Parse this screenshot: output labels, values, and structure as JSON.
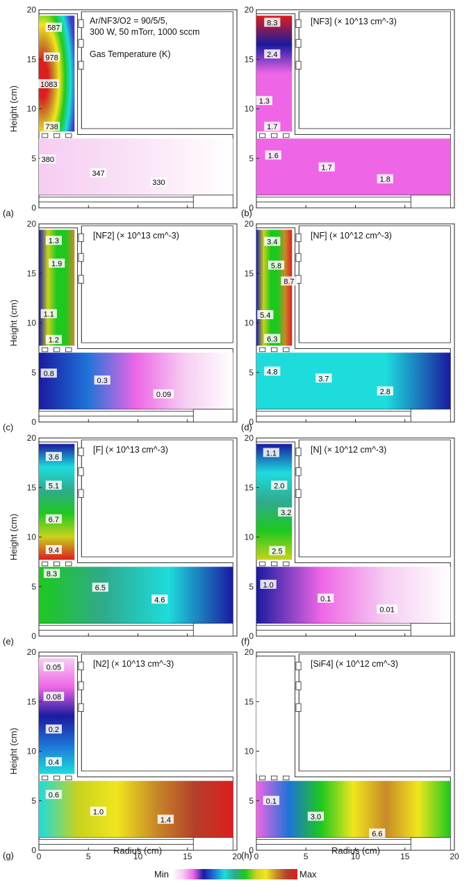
{
  "figure": {
    "xlabel": "Radius (cm)",
    "ylabel": "Height (cm)",
    "scale_min": "Min",
    "scale_max": "Max",
    "colormap": [
      "#ffffff",
      "#f6cdf2",
      "#ee66e6",
      "#1a1aa0",
      "#1e73d8",
      "#1edcdc",
      "#2faa8c",
      "#1ec81e",
      "#c8d21e",
      "#f0e61e",
      "#c88a28",
      "#b4402a",
      "#dc1e1e"
    ]
  },
  "chart_data": [
    {
      "type": "heatmap",
      "panel": "(a)",
      "title_lines": [
        "Ar/NF3/O2 = 90/5/5,",
        "300 W, 50 mTorr, 1000 sccm",
        "Gas Temperature (K)"
      ],
      "xlim": [
        0,
        20
      ],
      "ylim": [
        0,
        20
      ],
      "xticks": [
        0,
        5,
        10,
        15,
        20
      ],
      "yticks": [
        0,
        5,
        10,
        15,
        20
      ],
      "contour_labels": [
        {
          "r": 1.5,
          "z": 18.2,
          "text": "587"
        },
        {
          "r": 1.3,
          "z": 15.2,
          "text": "978"
        },
        {
          "r": 1.0,
          "z": 12.5,
          "text": "1083"
        },
        {
          "r": 1.3,
          "z": 8.2,
          "text": "738"
        },
        {
          "r": 0.9,
          "z": 4.9,
          "text": "380"
        },
        {
          "r": 6.0,
          "z": 3.5,
          "text": "347"
        },
        {
          "r": 12.1,
          "z": 2.6,
          "text": "330"
        }
      ]
    },
    {
      "type": "heatmap",
      "panel": "(b)",
      "title": "[NF3] (× 10^13 cm^-3)",
      "xlim": [
        0,
        20
      ],
      "ylim": [
        0,
        20
      ],
      "xticks": [
        0,
        5,
        10,
        15,
        20
      ],
      "yticks": [
        0,
        5,
        10,
        15,
        20
      ],
      "contour_labels": [
        {
          "r": 1.6,
          "z": 18.7,
          "text": "8.3"
        },
        {
          "r": 1.6,
          "z": 15.5,
          "text": "2.4"
        },
        {
          "r": 0.8,
          "z": 10.8,
          "text": "1.3"
        },
        {
          "r": 1.6,
          "z": 8.2,
          "text": "1.7"
        },
        {
          "r": 1.7,
          "z": 5.3,
          "text": "1.6"
        },
        {
          "r": 7.1,
          "z": 4.1,
          "text": "1.7"
        },
        {
          "r": 13.0,
          "z": 2.9,
          "text": "1.8"
        }
      ]
    },
    {
      "type": "heatmap",
      "panel": "(c)",
      "title": "[NF2] (× 10^13 cm^-3)",
      "xlim": [
        0,
        20
      ],
      "ylim": [
        0,
        20
      ],
      "xticks": [
        0,
        5,
        10,
        15,
        20
      ],
      "yticks": [
        0,
        5,
        10,
        15,
        20
      ],
      "contour_labels": [
        {
          "r": 1.5,
          "z": 18.3,
          "text": "1.3"
        },
        {
          "r": 1.8,
          "z": 16.0,
          "text": "1.9"
        },
        {
          "r": 1.0,
          "z": 10.9,
          "text": "1.1"
        },
        {
          "r": 1.5,
          "z": 8.3,
          "text": "1.2"
        },
        {
          "r": 1.0,
          "z": 4.9,
          "text": "0.8"
        },
        {
          "r": 6.4,
          "z": 4.2,
          "text": "0.3"
        },
        {
          "r": 12.6,
          "z": 2.8,
          "text": "0.09"
        }
      ]
    },
    {
      "type": "heatmap",
      "panel": "(d)",
      "title": "[NF] (× 10^12 cm^-3)",
      "xlim": [
        0,
        20
      ],
      "ylim": [
        0,
        20
      ],
      "xticks": [
        0,
        5,
        10,
        15,
        20
      ],
      "yticks": [
        0,
        5,
        10,
        15,
        20
      ],
      "contour_labels": [
        {
          "r": 1.6,
          "z": 18.2,
          "text": "3.4"
        },
        {
          "r": 2.0,
          "z": 15.8,
          "text": "5.8"
        },
        {
          "r": 3.3,
          "z": 14.2,
          "text": "8.7"
        },
        {
          "r": 0.9,
          "z": 10.8,
          "text": "5.4"
        },
        {
          "r": 1.6,
          "z": 8.4,
          "text": "6.3"
        },
        {
          "r": 1.6,
          "z": 5.1,
          "text": "4.8"
        },
        {
          "r": 6.8,
          "z": 4.4,
          "text": "3.7"
        },
        {
          "r": 13.0,
          "z": 3.1,
          "text": "2.8"
        }
      ]
    },
    {
      "type": "heatmap",
      "panel": "(e)",
      "title": "[F] (× 10^13 cm^-3)",
      "xlim": [
        0,
        20
      ],
      "ylim": [
        0,
        20
      ],
      "xticks": [
        0,
        5,
        10,
        15,
        20
      ],
      "yticks": [
        0,
        5,
        10,
        15,
        20
      ],
      "contour_labels": [
        {
          "r": 1.5,
          "z": 18.1,
          "text": "3.6"
        },
        {
          "r": 1.5,
          "z": 15.2,
          "text": "5.1"
        },
        {
          "r": 1.5,
          "z": 11.8,
          "text": "6.7"
        },
        {
          "r": 1.5,
          "z": 8.7,
          "text": "9.4"
        },
        {
          "r": 1.3,
          "z": 6.3,
          "text": "8.3"
        },
        {
          "r": 6.2,
          "z": 4.9,
          "text": "6.5"
        },
        {
          "r": 12.2,
          "z": 3.7,
          "text": "4.6"
        }
      ]
    },
    {
      "type": "heatmap",
      "panel": "(f)",
      "title": "[N] (× 10^12 cm^-3)",
      "xlim": [
        0,
        20
      ],
      "ylim": [
        0,
        20
      ],
      "xticks": [
        0,
        5,
        10,
        15,
        20
      ],
      "yticks": [
        0,
        5,
        10,
        15,
        20
      ],
      "contour_labels": [
        {
          "r": 1.5,
          "z": 18.5,
          "text": "1.1"
        },
        {
          "r": 2.3,
          "z": 15.2,
          "text": "2.0"
        },
        {
          "r": 3.0,
          "z": 12.5,
          "text": "3.2"
        },
        {
          "r": 2.1,
          "z": 8.6,
          "text": "2.5"
        },
        {
          "r": 1.2,
          "z": 5.2,
          "text": "1.0"
        },
        {
          "r": 7.0,
          "z": 3.8,
          "text": "0.1"
        },
        {
          "r": 13.2,
          "z": 2.7,
          "text": "0.01"
        }
      ]
    },
    {
      "type": "heatmap",
      "panel": "(g)",
      "title": "[N2] (× 10^13 cm^-3)",
      "xlim": [
        0,
        20
      ],
      "ylim": [
        0,
        20
      ],
      "xticks": [
        0,
        5,
        10,
        15,
        20
      ],
      "yticks": [
        0,
        5,
        10,
        15,
        20
      ],
      "contour_labels": [
        {
          "r": 1.5,
          "z": 18.5,
          "text": "0.05"
        },
        {
          "r": 1.5,
          "z": 15.5,
          "text": "0.08"
        },
        {
          "r": 1.5,
          "z": 12.2,
          "text": "0.2"
        },
        {
          "r": 1.5,
          "z": 8.9,
          "text": "0.4"
        },
        {
          "r": 1.5,
          "z": 5.6,
          "text": "0.6"
        },
        {
          "r": 6.0,
          "z": 3.9,
          "text": "1.0"
        },
        {
          "r": 12.8,
          "z": 3.1,
          "text": "1.4"
        }
      ]
    },
    {
      "type": "heatmap",
      "panel": "(h)",
      "title": "[SiF4] (× 10^12 cm^-3)",
      "xlim": [
        0,
        20
      ],
      "ylim": [
        0,
        20
      ],
      "xticks": [
        0,
        5,
        10,
        15,
        20
      ],
      "yticks": [
        0,
        5,
        10,
        15,
        20
      ],
      "contour_labels": [
        {
          "r": 1.5,
          "z": 5.0,
          "text": "0.1"
        },
        {
          "r": 6.0,
          "z": 3.4,
          "text": "3.0"
        },
        {
          "r": 12.2,
          "z": 1.7,
          "text": "6.6"
        }
      ]
    }
  ]
}
